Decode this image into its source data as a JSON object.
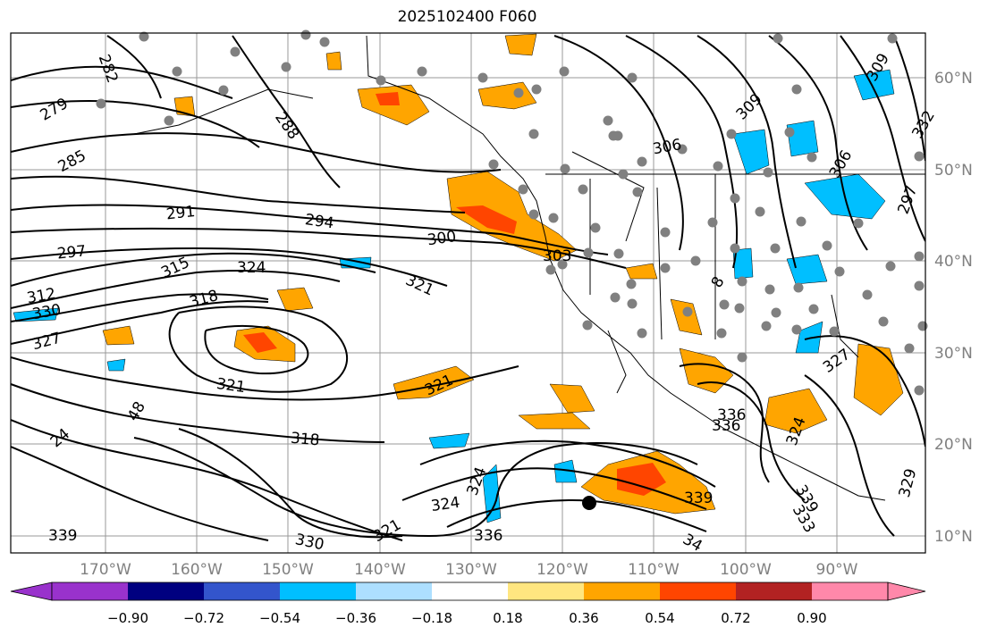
{
  "title": "2025102400 F060",
  "map": {
    "lon_labels": [
      "170°W",
      "160°W",
      "150°W",
      "140°W",
      "130°W",
      "120°W",
      "110°W",
      "100°W",
      "90°W"
    ],
    "lat_labels": [
      "60°N",
      "50°N",
      "40°N",
      "30°N",
      "20°N",
      "10°N"
    ],
    "label_color": "#808080",
    "contour_labels": [
      "282",
      "279",
      "285",
      "288",
      "291",
      "294",
      "297",
      "300",
      "303",
      "306",
      "309",
      "315",
      "318",
      "321",
      "324",
      "327",
      "330",
      "312",
      "336",
      "339",
      "333",
      "48",
      "24",
      "321",
      "318",
      "324",
      "321",
      "336",
      "339",
      "330",
      "321",
      "34",
      "324",
      "327",
      "306",
      "309",
      "297",
      "324",
      "336",
      "329",
      "332",
      "8",
      "339"
    ],
    "hurricane_marker": "black dot near 14°N 116°W"
  },
  "colorbar": {
    "ticks": [
      "−0.90",
      "−0.72",
      "−0.54",
      "−0.36",
      "−0.18",
      "0.18",
      "0.36",
      "0.54",
      "0.72",
      "0.90"
    ],
    "colors": [
      "#9932CC",
      "#000080",
      "#3355CC",
      "#00BFFF",
      "#ADDFFF",
      "#FFFFFF",
      "#FFE680",
      "#FFA500",
      "#FF4500",
      "#B22222",
      "#FF88AA"
    ]
  }
}
